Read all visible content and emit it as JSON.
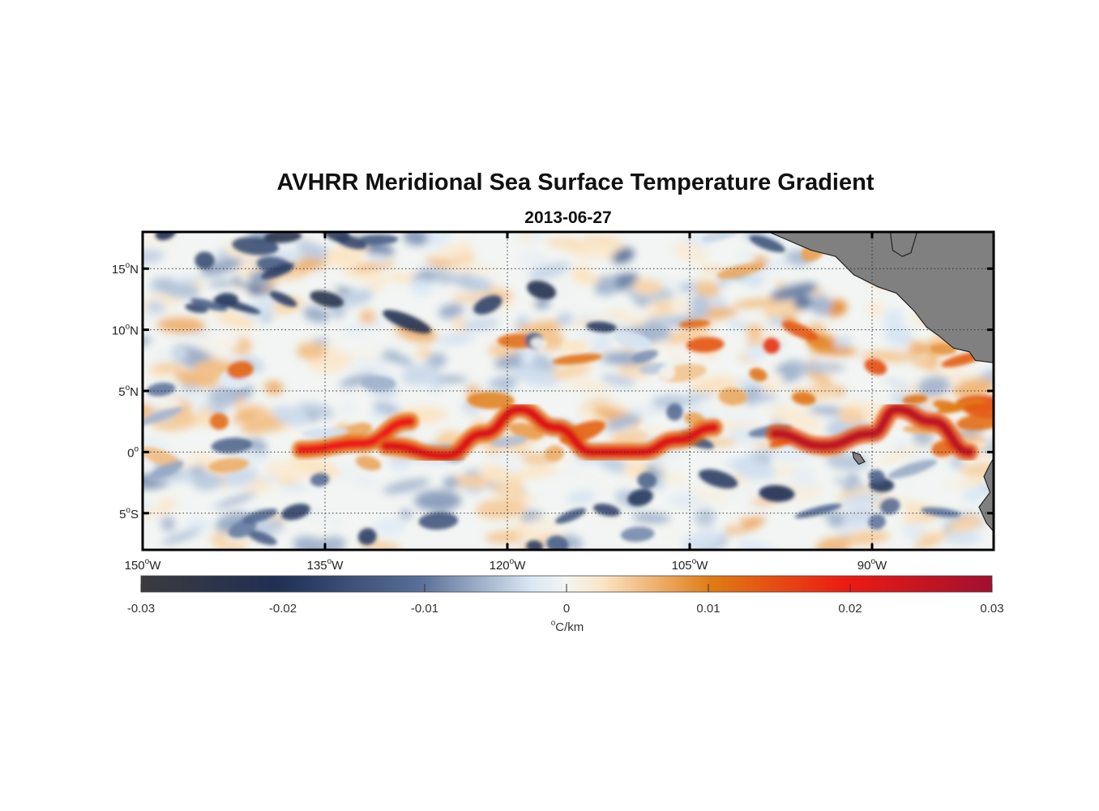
{
  "title": "AVHRR Meridional Sea Surface Temperature Gradient",
  "subtitle": "2013-06-27",
  "map": {
    "type": "heatmap",
    "projection": "equirectangular",
    "lon_range": [
      -150,
      -80
    ],
    "lat_range": [
      -8,
      18
    ],
    "lon_ticks": [
      {
        "value": -150,
        "num": "150",
        "sup": "o",
        "hemi": "W"
      },
      {
        "value": -135,
        "num": "135",
        "sup": "o",
        "hemi": "W"
      },
      {
        "value": -120,
        "num": "120",
        "sup": "o",
        "hemi": "W"
      },
      {
        "value": -105,
        "num": "105",
        "sup": "o",
        "hemi": "W"
      },
      {
        "value": -90,
        "num": "90",
        "sup": "o",
        "hemi": "W"
      }
    ],
    "lat_ticks": [
      {
        "value": 15,
        "num": "15",
        "sup": "o",
        "hemi": "N"
      },
      {
        "value": 10,
        "num": "10",
        "sup": "o",
        "hemi": "N"
      },
      {
        "value": 5,
        "num": "5",
        "sup": "o",
        "hemi": "N"
      },
      {
        "value": 0,
        "num": "0",
        "sup": "o",
        "hemi": ""
      },
      {
        "value": -5,
        "num": "5",
        "sup": "o",
        "hemi": "S"
      }
    ],
    "gridlines": true,
    "land_color": "#808080",
    "features": [
      {
        "name": "equatorial front",
        "sign": "positive",
        "path": [
          [
            -137,
            0.2
          ],
          [
            -132,
            0.7
          ],
          [
            -128,
            2.5
          ]
        ],
        "strength": 0.02
      },
      {
        "name": "equatorial front",
        "sign": "positive",
        "path": [
          [
            -130,
            0.5
          ],
          [
            -125,
            -0.3
          ],
          [
            -122,
            1.5
          ],
          [
            -119,
            3.5
          ],
          [
            -116,
            2
          ],
          [
            -113,
            0
          ],
          [
            -109,
            0
          ],
          [
            -106,
            1
          ],
          [
            -103,
            2
          ]
        ],
        "strength": 0.022
      },
      {
        "name": "eastern front",
        "sign": "positive",
        "path": [
          [
            -98,
            1.5
          ],
          [
            -94,
            0.5
          ],
          [
            -90,
            1.5
          ],
          [
            -88,
            3.5
          ],
          [
            -85,
            2.5
          ],
          [
            -82,
            0
          ]
        ],
        "strength": 0.026
      }
    ]
  },
  "colorbar": {
    "min": -0.03,
    "max": 0.03,
    "ticks": [
      "-0.03",
      "-0.02",
      "-0.01",
      "0",
      "0.01",
      "0.02",
      "0.03"
    ],
    "tick_values": [
      -0.03,
      -0.02,
      -0.01,
      0,
      0.01,
      0.02,
      0.03
    ],
    "units_sup": "o",
    "units": "C/km",
    "colors": [
      "#3b3b3f",
      "#1f2f55",
      "#5a7098",
      "#e3edf7",
      "#fbf1e2",
      "#e07b14",
      "#ec1a12",
      "#a01030"
    ]
  }
}
